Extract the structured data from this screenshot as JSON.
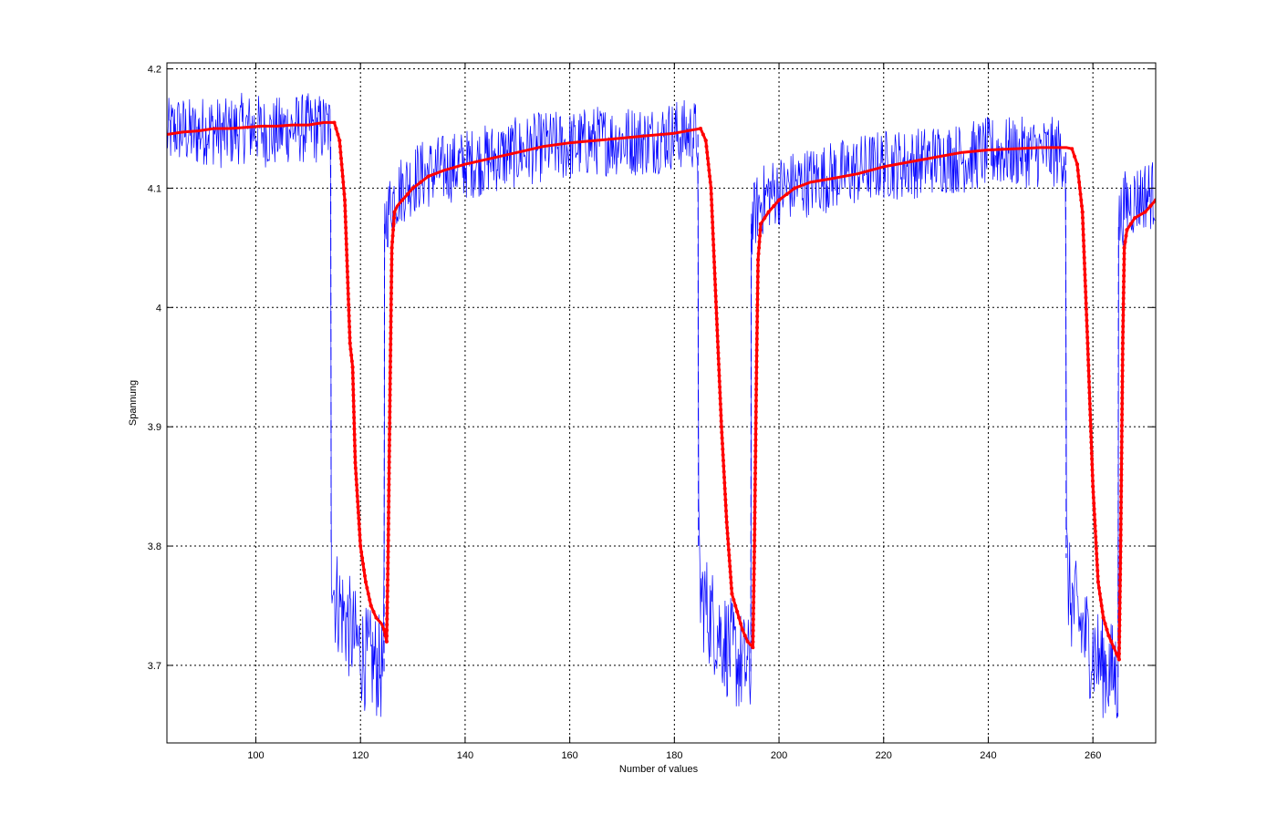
{
  "chart_data": {
    "type": "line",
    "title": "",
    "xlabel": "Number of values",
    "ylabel": "Spannung",
    "xlim": [
      83,
      272
    ],
    "ylim": [
      3.635,
      4.205
    ],
    "grid": true,
    "x_ticks": [
      100,
      120,
      140,
      160,
      180,
      200,
      220,
      240,
      260
    ],
    "y_ticks": [
      3.7,
      3.8,
      3.9,
      4,
      4.1,
      4.2
    ],
    "x_tick_labels": [
      "100",
      "120",
      "140",
      "160",
      "180",
      "200",
      "220",
      "240",
      "260"
    ],
    "y_tick_labels": [
      "3.7",
      "3.8",
      "3.9",
      "4",
      "4.1",
      "4.2"
    ],
    "series": [
      {
        "color": "#0000ff",
        "style": "noisy-dashed",
        "points": [
          [
            83,
            4.145
          ],
          [
            85,
            4.15
          ],
          [
            88,
            4.145
          ],
          [
            91,
            4.15
          ],
          [
            94,
            4.145
          ],
          [
            97,
            4.15
          ],
          [
            100,
            4.15
          ],
          [
            103,
            4.145
          ],
          [
            106,
            4.15
          ],
          [
            109,
            4.15
          ],
          [
            112,
            4.15
          ],
          [
            114.3,
            4.15
          ],
          [
            114.4,
            3.8
          ],
          [
            115,
            3.76
          ],
          [
            117,
            3.74
          ],
          [
            119,
            3.72
          ],
          [
            121,
            3.705
          ],
          [
            123,
            3.7
          ],
          [
            124.5,
            3.695
          ],
          [
            124.6,
            4.07
          ],
          [
            126,
            4.09
          ],
          [
            128,
            4.1
          ],
          [
            131,
            4.11
          ],
          [
            135,
            4.115
          ],
          [
            140,
            4.12
          ],
          [
            145,
            4.125
          ],
          [
            150,
            4.13
          ],
          [
            155,
            4.135
          ],
          [
            160,
            4.135
          ],
          [
            165,
            4.14
          ],
          [
            170,
            4.14
          ],
          [
            175,
            4.14
          ],
          [
            180,
            4.145
          ],
          [
            184.5,
            4.145
          ],
          [
            184.6,
            3.8
          ],
          [
            185,
            3.76
          ],
          [
            187,
            3.74
          ],
          [
            189,
            3.725
          ],
          [
            191,
            3.71
          ],
          [
            193,
            3.7
          ],
          [
            194.6,
            3.695
          ],
          [
            194.7,
            4.07
          ],
          [
            196,
            4.085
          ],
          [
            198,
            4.095
          ],
          [
            201,
            4.1
          ],
          [
            205,
            4.105
          ],
          [
            210,
            4.11
          ],
          [
            215,
            4.115
          ],
          [
            220,
            4.12
          ],
          [
            225,
            4.12
          ],
          [
            230,
            4.125
          ],
          [
            235,
            4.125
          ],
          [
            240,
            4.13
          ],
          [
            245,
            4.13
          ],
          [
            250,
            4.13
          ],
          [
            254.8,
            4.13
          ],
          [
            254.9,
            3.79
          ],
          [
            255.5,
            3.76
          ],
          [
            257,
            3.74
          ],
          [
            259,
            3.72
          ],
          [
            261,
            3.705
          ],
          [
            263,
            3.695
          ],
          [
            264.8,
            3.69
          ],
          [
            264.9,
            4.07
          ],
          [
            266,
            4.085
          ],
          [
            268,
            4.09
          ],
          [
            270,
            4.095
          ],
          [
            272,
            4.095
          ]
        ]
      },
      {
        "color": "#ff0000",
        "style": "line-with-dots",
        "points": [
          [
            83,
            4.145
          ],
          [
            86,
            4.147
          ],
          [
            89,
            4.148
          ],
          [
            92,
            4.15
          ],
          [
            95,
            4.15
          ],
          [
            98,
            4.151
          ],
          [
            101,
            4.152
          ],
          [
            104,
            4.152
          ],
          [
            107,
            4.153
          ],
          [
            110,
            4.153
          ],
          [
            113,
            4.155
          ],
          [
            115,
            4.155
          ],
          [
            116,
            4.14
          ],
          [
            117,
            4.09
          ],
          [
            118,
            3.97
          ],
          [
            118.5,
            3.95
          ],
          [
            119,
            3.87
          ],
          [
            120,
            3.8
          ],
          [
            121,
            3.77
          ],
          [
            122,
            3.75
          ],
          [
            123,
            3.74
          ],
          [
            124,
            3.735
          ],
          [
            124.5,
            3.73
          ],
          [
            125,
            3.72
          ],
          [
            125.3,
            3.8
          ],
          [
            125.7,
            3.95
          ],
          [
            126,
            4.05
          ],
          [
            126.5,
            4.08
          ],
          [
            127,
            4.085
          ],
          [
            128,
            4.09
          ],
          [
            130,
            4.1
          ],
          [
            133,
            4.11
          ],
          [
            136,
            4.115
          ],
          [
            140,
            4.12
          ],
          [
            145,
            4.125
          ],
          [
            150,
            4.13
          ],
          [
            155,
            4.135
          ],
          [
            160,
            4.138
          ],
          [
            165,
            4.14
          ],
          [
            170,
            4.142
          ],
          [
            175,
            4.144
          ],
          [
            180,
            4.146
          ],
          [
            185,
            4.15
          ],
          [
            186,
            4.14
          ],
          [
            187,
            4.1
          ],
          [
            188,
            4.0
          ],
          [
            189,
            3.9
          ],
          [
            190,
            3.82
          ],
          [
            191,
            3.76
          ],
          [
            192,
            3.745
          ],
          [
            193,
            3.73
          ],
          [
            194,
            3.72
          ],
          [
            195,
            3.715
          ],
          [
            195.3,
            3.8
          ],
          [
            195.7,
            3.95
          ],
          [
            196,
            4.04
          ],
          [
            196.5,
            4.07
          ],
          [
            198,
            4.08
          ],
          [
            200,
            4.09
          ],
          [
            203,
            4.1
          ],
          [
            206,
            4.105
          ],
          [
            210,
            4.108
          ],
          [
            215,
            4.112
          ],
          [
            220,
            4.118
          ],
          [
            225,
            4.122
          ],
          [
            230,
            4.126
          ],
          [
            235,
            4.13
          ],
          [
            240,
            4.132
          ],
          [
            245,
            4.133
          ],
          [
            250,
            4.134
          ],
          [
            255,
            4.134
          ],
          [
            256,
            4.133
          ],
          [
            257,
            4.12
          ],
          [
            258,
            4.08
          ],
          [
            259,
            3.97
          ],
          [
            260,
            3.85
          ],
          [
            261,
            3.77
          ],
          [
            262,
            3.74
          ],
          [
            263,
            3.725
          ],
          [
            264,
            3.715
          ],
          [
            265,
            3.705
          ],
          [
            265.3,
            3.8
          ],
          [
            265.7,
            3.97
          ],
          [
            266,
            4.05
          ],
          [
            266.5,
            4.065
          ],
          [
            268,
            4.075
          ],
          [
            270,
            4.08
          ],
          [
            272,
            4.09
          ]
        ]
      }
    ]
  }
}
